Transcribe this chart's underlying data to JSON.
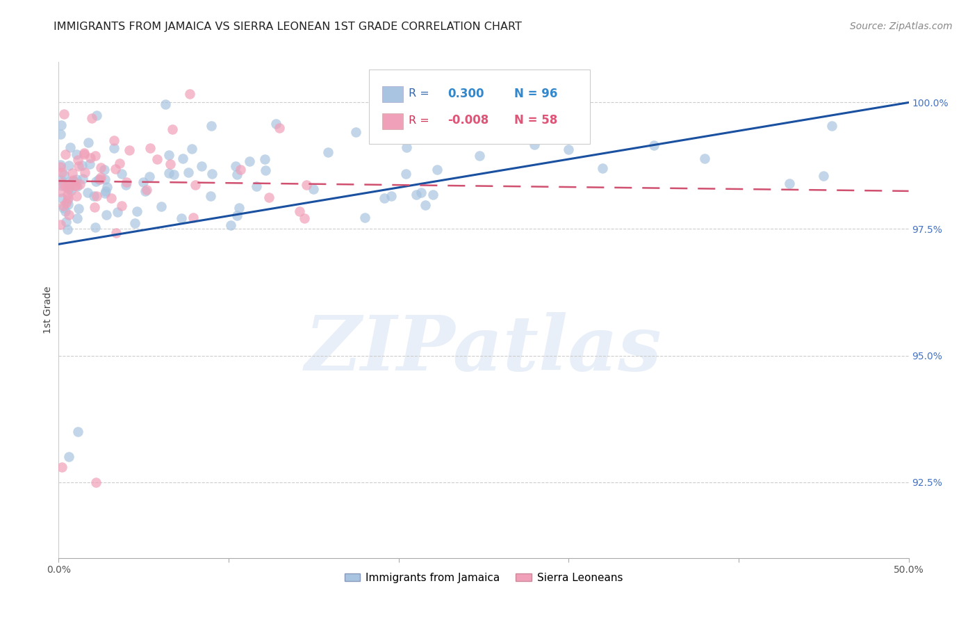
{
  "title": "IMMIGRANTS FROM JAMAICA VS SIERRA LEONEAN 1ST GRADE CORRELATION CHART",
  "source": "Source: ZipAtlas.com",
  "ylabel": "1st Grade",
  "x_min": 0.0,
  "x_max": 0.5,
  "y_min": 0.91,
  "y_max": 1.008,
  "yticks": [
    0.925,
    0.95,
    0.975,
    1.0
  ],
  "ytick_labels": [
    "92.5%",
    "95.0%",
    "97.5%",
    "100.0%"
  ],
  "xticks": [
    0.0,
    0.1,
    0.2,
    0.3,
    0.4,
    0.5
  ],
  "xtick_labels": [
    "0.0%",
    "",
    "",
    "",
    "",
    "50.0%"
  ],
  "blue_color": "#a8c4e0",
  "pink_color": "#f0a0b8",
  "blue_line_color": "#1a50a0",
  "pink_line_color": "#d05070",
  "R_blue": 0.3,
  "N_blue": 96,
  "R_pink": -0.008,
  "N_pink": 58,
  "legend_blue": "Immigrants from Jamaica",
  "legend_pink": "Sierra Leoneans",
  "watermark": "ZIPatlas",
  "title_fontsize": 11.5,
  "source_fontsize": 10,
  "tick_fontsize": 10,
  "ylabel_fontsize": 10
}
